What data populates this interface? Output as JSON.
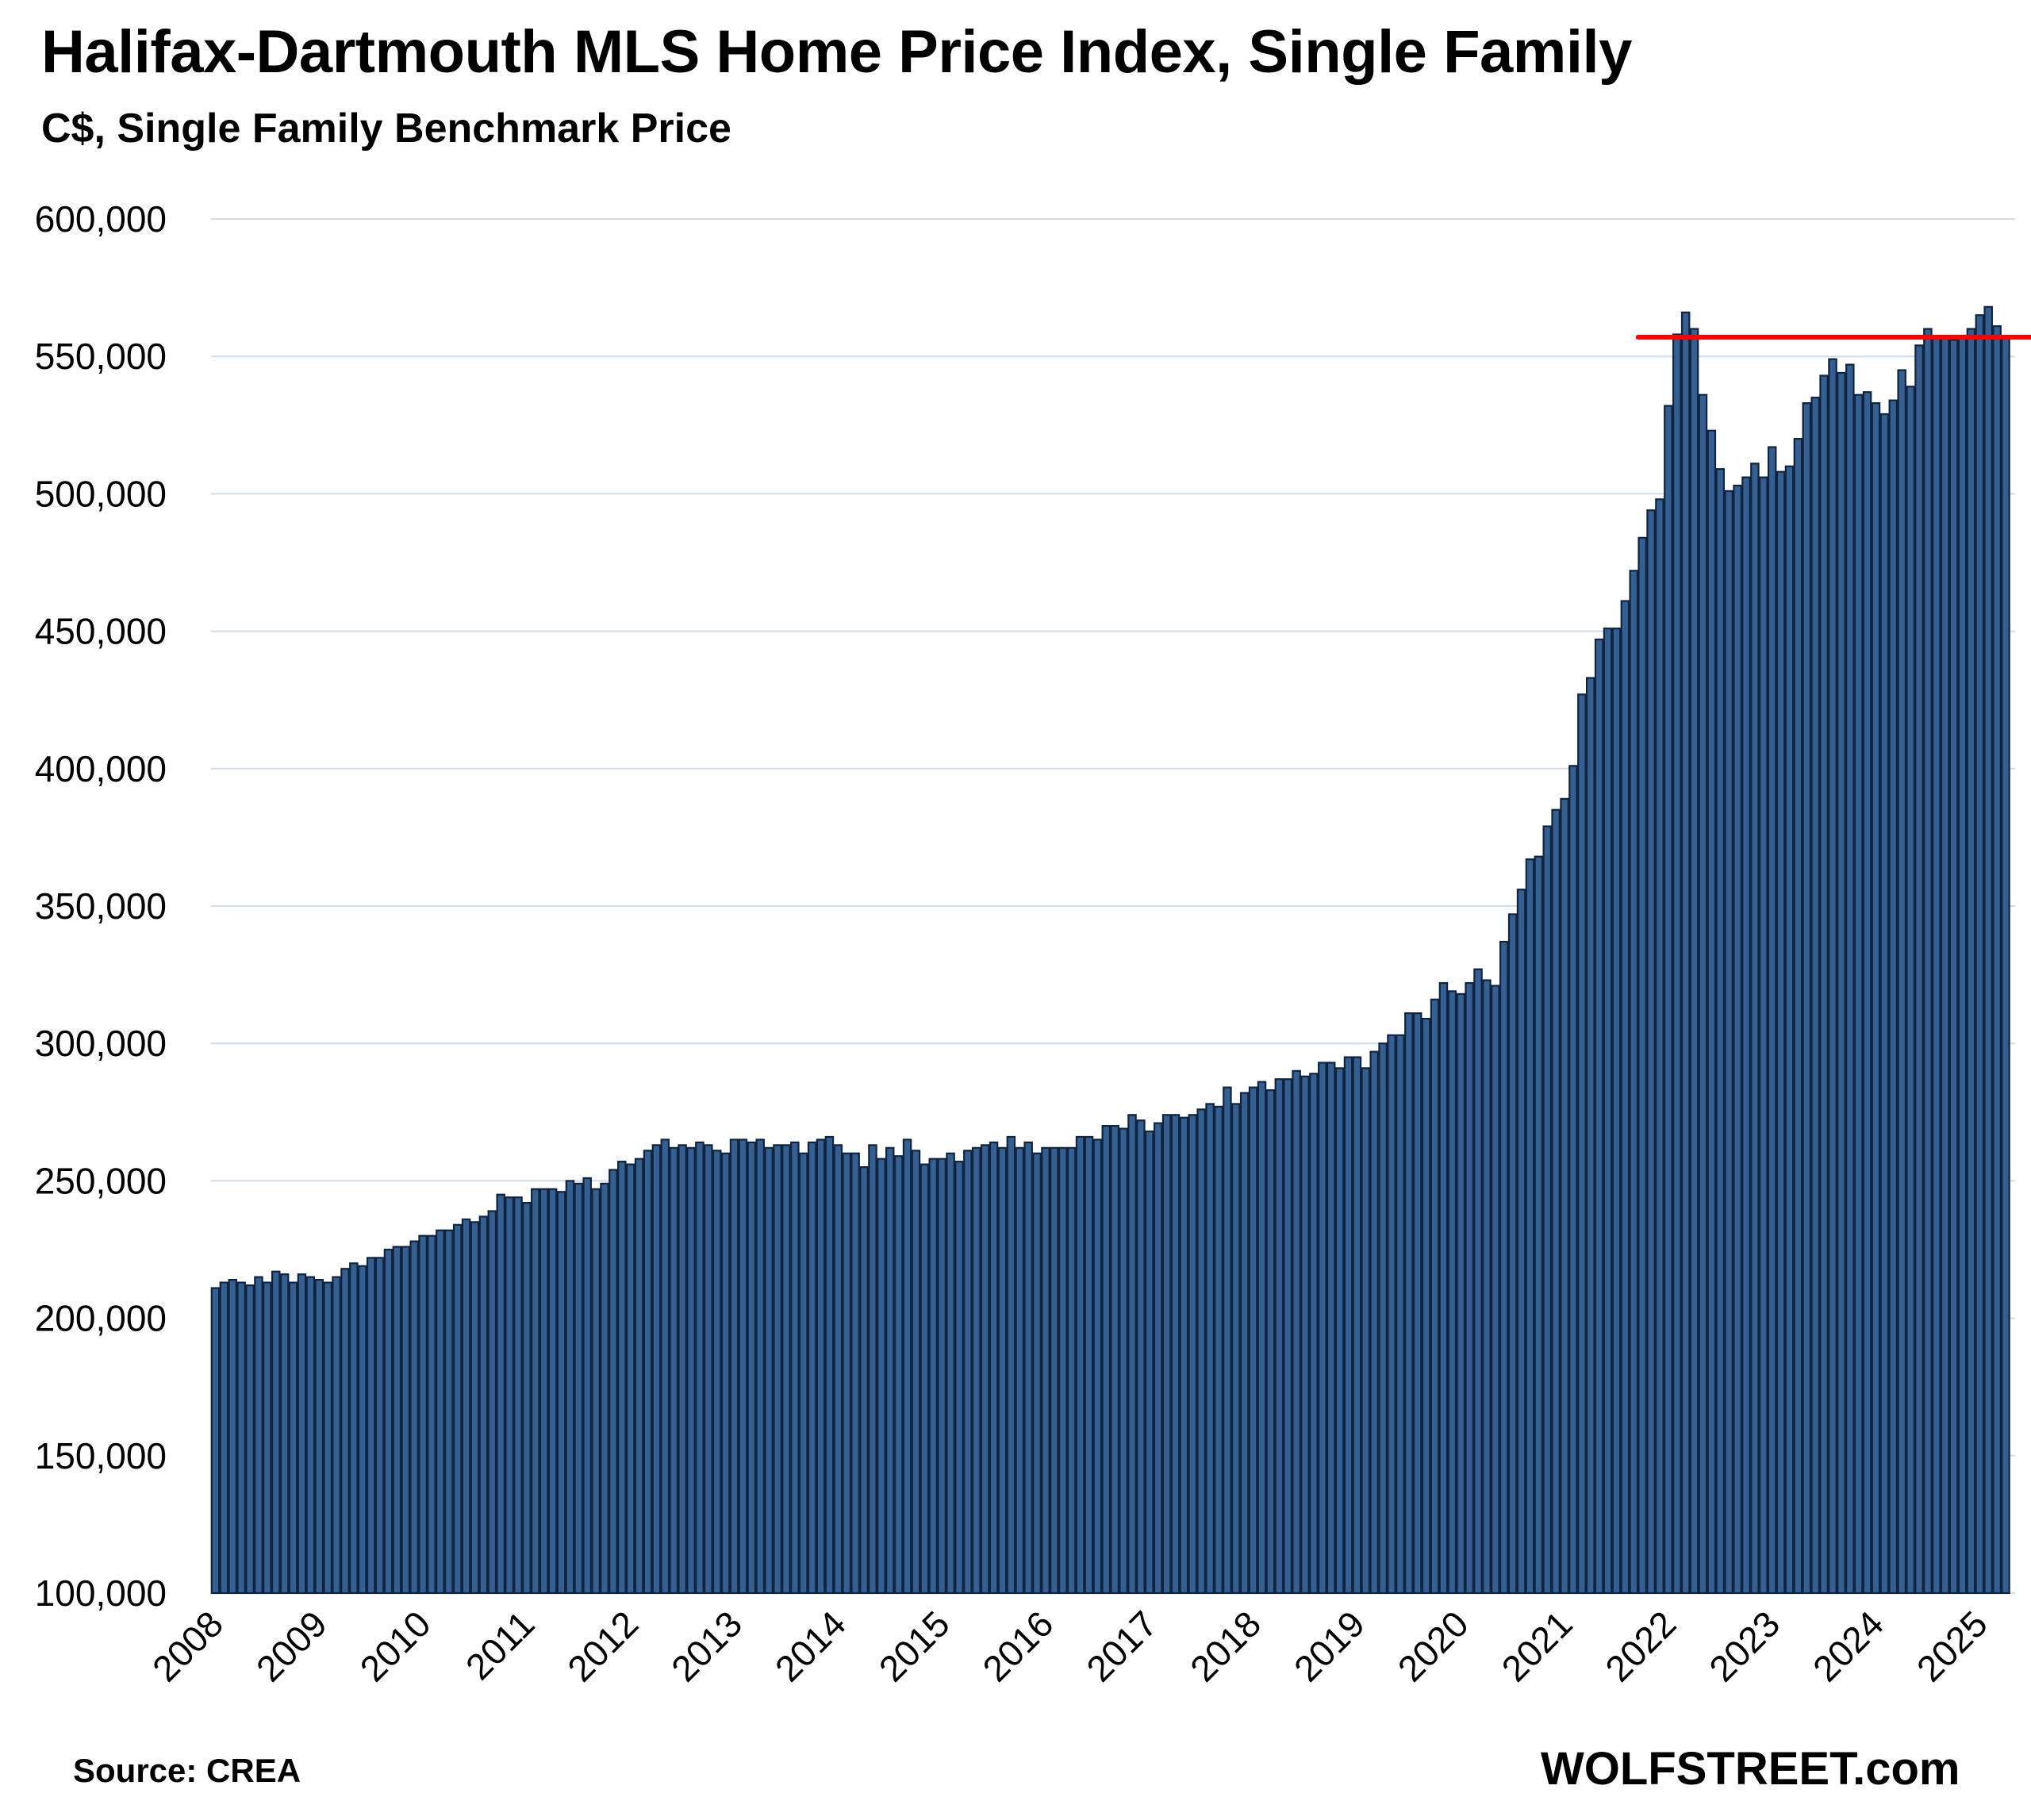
{
  "chart_data": {
    "type": "bar",
    "title": "Halifax-Dartmouth MLS Home Price Index, Single Family",
    "subtitle": "C$, Single Family Benchmark Price",
    "xlabel": "",
    "ylabel": "",
    "ylim": [
      100000,
      600000
    ],
    "yticks": [
      100000,
      150000,
      200000,
      250000,
      300000,
      350000,
      400000,
      450000,
      500000,
      550000,
      600000
    ],
    "ytick_labels": [
      "100,000",
      "150,000",
      "200,000",
      "250,000",
      "300,000",
      "350,000",
      "400,000",
      "450,000",
      "500,000",
      "550,000",
      "600,000"
    ],
    "xtick_labels": [
      "2008",
      "2009",
      "2010",
      "2011",
      "2012",
      "2013",
      "2014",
      "2015",
      "2016",
      "2017",
      "2018",
      "2019",
      "2020",
      "2021",
      "2022",
      "2023",
      "2024",
      "2025"
    ],
    "start": "2008-01",
    "frequency": "monthly",
    "grid": true,
    "bar_color": "#355F91",
    "bar_edge_color": "#0F2440",
    "reference_line": {
      "value": 557000,
      "start": "2021-10",
      "color": "#FF0000"
    },
    "values": [
      211000,
      213000,
      214000,
      213000,
      212000,
      215000,
      213000,
      217000,
      216000,
      213000,
      216000,
      215000,
      214000,
      213000,
      215000,
      218000,
      220000,
      219000,
      222000,
      222000,
      225000,
      226000,
      226000,
      228000,
      230000,
      230000,
      232000,
      232000,
      234000,
      236000,
      235000,
      237000,
      239000,
      245000,
      244000,
      244000,
      242000,
      247000,
      247000,
      247000,
      246000,
      250000,
      249000,
      251000,
      247000,
      249000,
      254000,
      257000,
      256000,
      258000,
      261000,
      263000,
      265000,
      262000,
      263000,
      262000,
      264000,
      263000,
      261000,
      260000,
      265000,
      265000,
      264000,
      265000,
      262000,
      263000,
      263000,
      264000,
      260000,
      264000,
      265000,
      266000,
      263000,
      260000,
      260000,
      255000,
      263000,
      258000,
      262000,
      259000,
      265000,
      261000,
      256000,
      258000,
      258000,
      260000,
      257000,
      261000,
      262000,
      263000,
      264000,
      262000,
      266000,
      262000,
      264000,
      260000,
      262000,
      262000,
      262000,
      262000,
      266000,
      266000,
      265000,
      270000,
      270000,
      269000,
      274000,
      272000,
      268000,
      271000,
      274000,
      274000,
      273000,
      274000,
      276000,
      278000,
      277000,
      284000,
      278000,
      282000,
      284000,
      286000,
      283000,
      287000,
      287000,
      290000,
      288000,
      289000,
      293000,
      293000,
      291000,
      295000,
      295000,
      291000,
      297000,
      300000,
      303000,
      303000,
      311000,
      311000,
      309000,
      316000,
      322000,
      319000,
      318000,
      322000,
      327000,
      323000,
      321000,
      337000,
      347000,
      356000,
      367000,
      368000,
      379000,
      385000,
      389000,
      401000,
      427000,
      433000,
      447000,
      451000,
      451000,
      461000,
      472000,
      484000,
      494000,
      498000,
      532000,
      558000,
      566000,
      560000,
      536000,
      523000,
      509000,
      501000,
      503000,
      506000,
      511000,
      506000,
      517000,
      508000,
      510000,
      520000,
      533000,
      535000,
      543000,
      549000,
      544000,
      547000,
      536000,
      537000,
      533000,
      529000,
      534000,
      545000,
      539000,
      554000,
      560000,
      557000,
      557000,
      556000,
      557000,
      560000,
      565000,
      568000,
      561000,
      557000
    ]
  },
  "footer": {
    "source": "Source: CREA",
    "brand": "WOLFSTREET.com"
  }
}
